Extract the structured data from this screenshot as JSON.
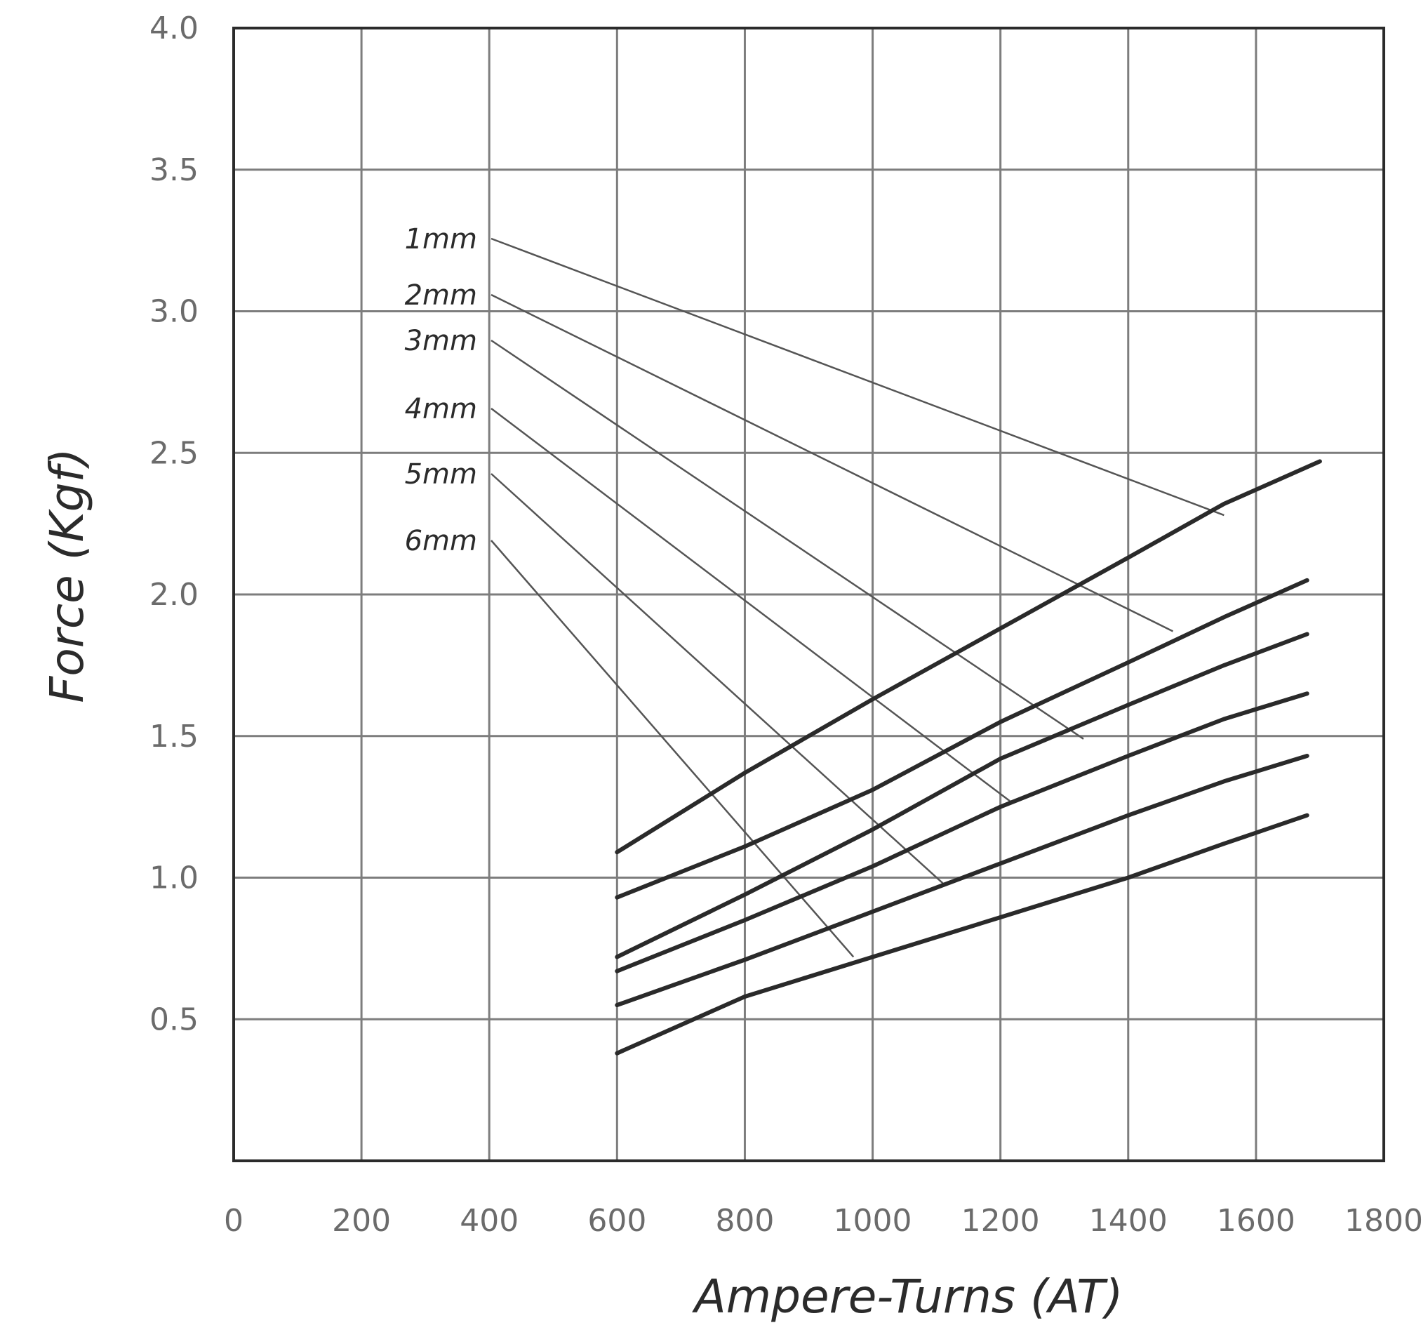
{
  "chart_data": {
    "type": "line",
    "xlabel": "Ampere-Turns (AT)",
    "ylabel": "Force (Kgf)",
    "xlim": [
      0,
      1800
    ],
    "ylim": [
      0,
      4.0
    ],
    "x_ticks": [
      "0",
      "200",
      "400",
      "600",
      "800",
      "1000",
      "1200",
      "1400",
      "1600",
      "1800"
    ],
    "y_ticks": [
      "0.5",
      "1.0",
      "1.5",
      "2.0",
      "2.5",
      "3.0",
      "3.5",
      "4.0"
    ],
    "grid": true,
    "series": [
      {
        "name": "1mm",
        "x": [
          600,
          800,
          1000,
          1200,
          1400,
          1550,
          1700
        ],
        "y": [
          1.09,
          1.37,
          1.63,
          1.88,
          2.13,
          2.32,
          2.47
        ]
      },
      {
        "name": "2mm",
        "x": [
          600,
          800,
          1000,
          1200,
          1400,
          1550,
          1680
        ],
        "y": [
          0.93,
          1.11,
          1.31,
          1.55,
          1.76,
          1.92,
          2.05
        ]
      },
      {
        "name": "3mm",
        "x": [
          600,
          800,
          1000,
          1200,
          1400,
          1550,
          1680
        ],
        "y": [
          0.72,
          0.94,
          1.17,
          1.42,
          1.61,
          1.75,
          1.86
        ]
      },
      {
        "name": "4mm",
        "x": [
          600,
          800,
          1000,
          1200,
          1400,
          1550,
          1680
        ],
        "y": [
          0.67,
          0.85,
          1.04,
          1.25,
          1.43,
          1.56,
          1.65
        ]
      },
      {
        "name": "5mm",
        "x": [
          600,
          800,
          1000,
          1200,
          1400,
          1550,
          1680
        ],
        "y": [
          0.55,
          0.71,
          0.88,
          1.05,
          1.22,
          1.34,
          1.43
        ]
      },
      {
        "name": "6mm",
        "x": [
          600,
          800,
          1000,
          1200,
          1400,
          1550,
          1680
        ],
        "y": [
          0.38,
          0.58,
          0.72,
          0.86,
          1.0,
          1.12,
          1.22
        ]
      }
    ],
    "annotations": [
      {
        "label": "1mm",
        "anchor_x": 1550,
        "anchor_y": 2.28
      },
      {
        "label": "2mm",
        "anchor_x": 1470,
        "anchor_y": 1.87
      },
      {
        "label": "3mm",
        "anchor_x": 1330,
        "anchor_y": 1.49
      },
      {
        "label": "4mm",
        "anchor_x": 1215,
        "anchor_y": 1.27
      },
      {
        "label": "5mm",
        "anchor_x": 1110,
        "anchor_y": 0.98
      },
      {
        "label": "6mm",
        "anchor_x": 970,
        "anchor_y": 0.72
      }
    ]
  }
}
